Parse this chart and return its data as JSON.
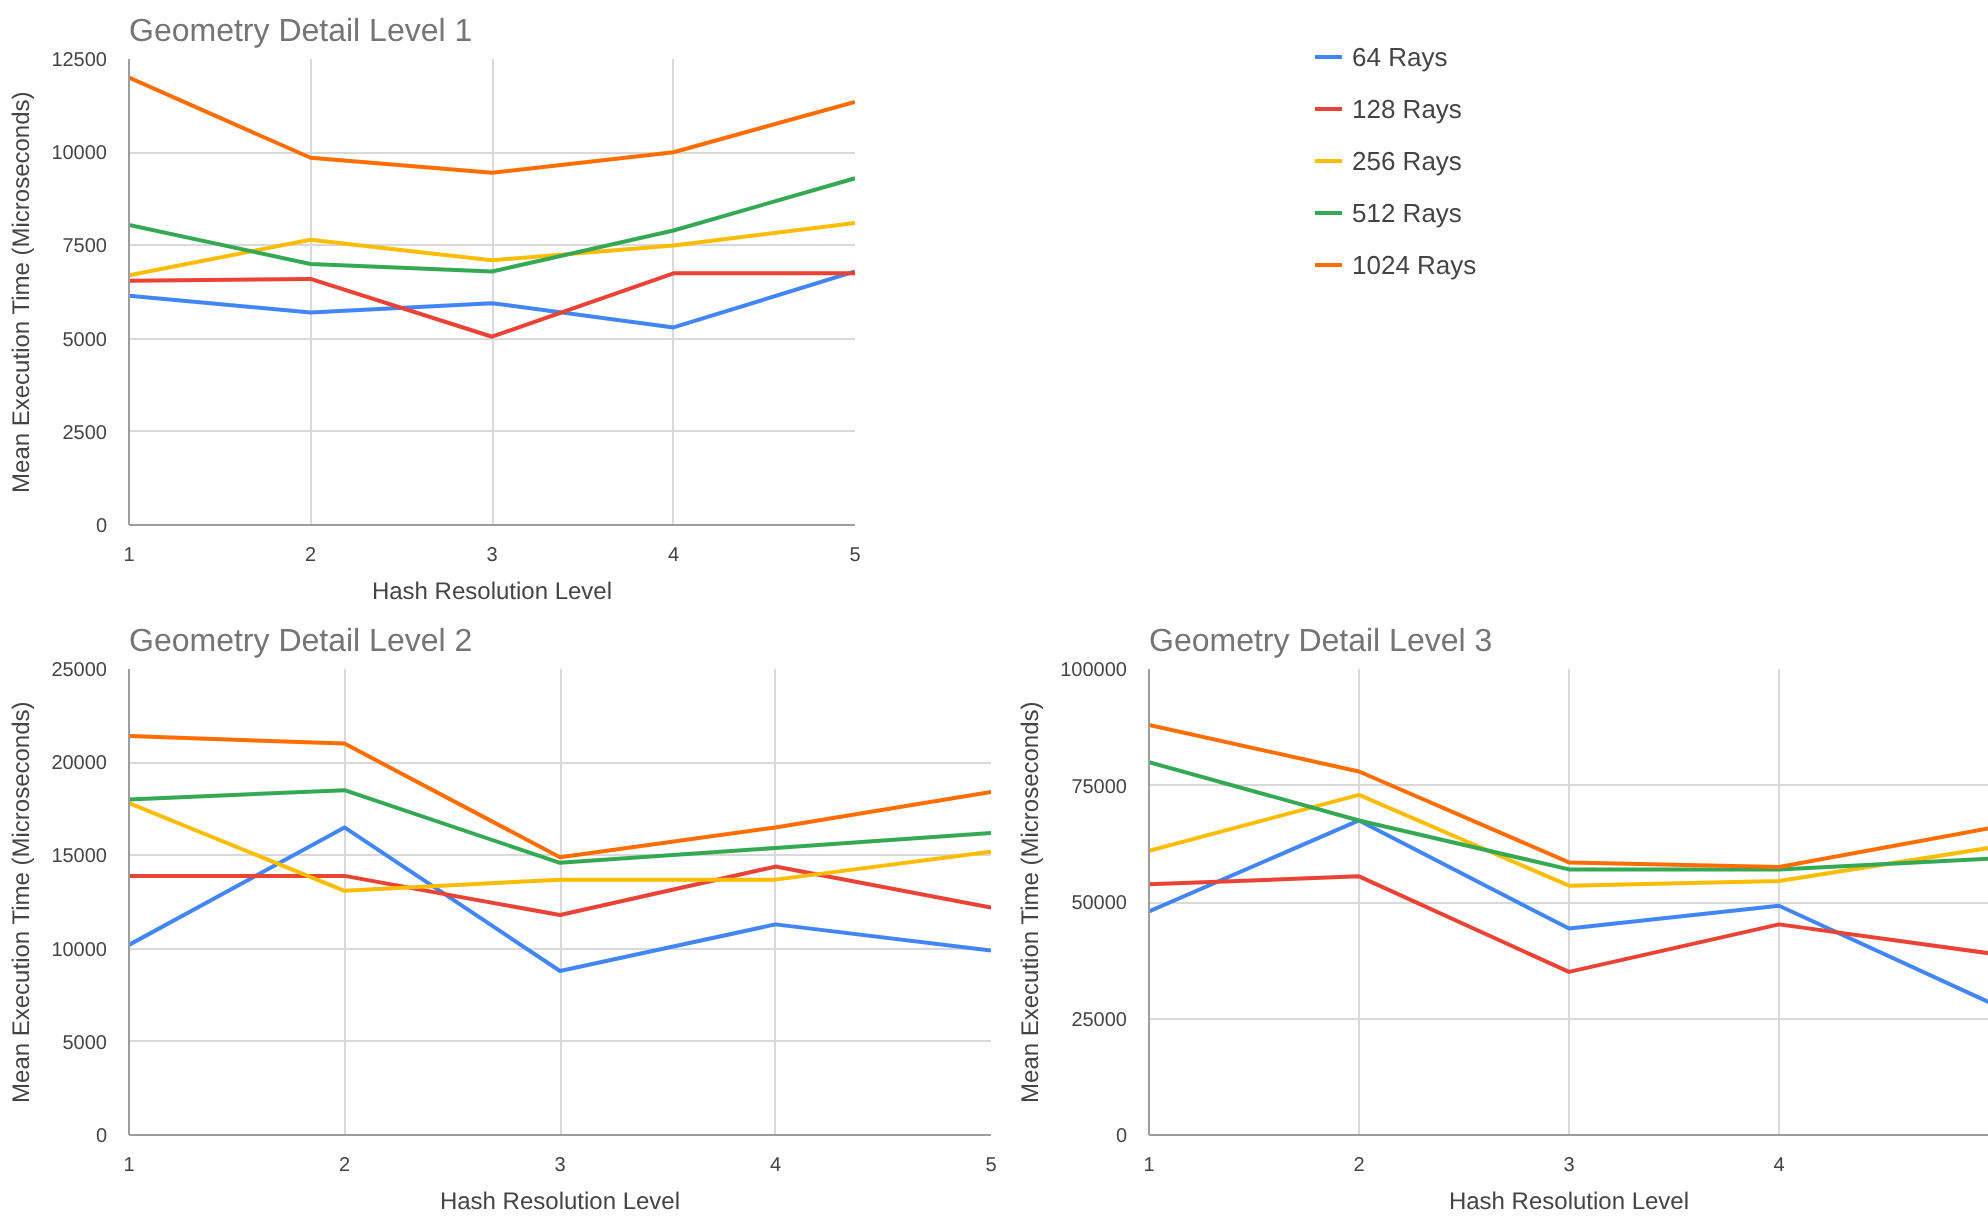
{
  "chart_data": [
    {
      "type": "line",
      "title": "Geometry Detail Level 1",
      "xlabel": "Hash Resolution Level",
      "ylabel": "Mean Execution Time (Microseconds)",
      "x": [
        1,
        2,
        3,
        4,
        5
      ],
      "xlim": [
        1,
        5
      ],
      "xticks": [
        1,
        2,
        3,
        4,
        5
      ],
      "ylim": [
        0,
        12500
      ],
      "yticks": [
        0,
        2500,
        5000,
        7500,
        10000,
        12500
      ],
      "grid": true,
      "legend": "right",
      "series": [
        {
          "name": "64 Rays",
          "color": "#4285f4",
          "values": [
            6150,
            5700,
            5950,
            5300,
            6800
          ]
        },
        {
          "name": "128 Rays",
          "color": "#ea4335",
          "values": [
            6550,
            6600,
            5050,
            6750,
            6750
          ]
        },
        {
          "name": "256 Rays",
          "color": "#fbbc04",
          "values": [
            6700,
            7650,
            7100,
            7500,
            8100
          ]
        },
        {
          "name": "512 Rays",
          "color": "#34a853",
          "values": [
            8050,
            7000,
            6800,
            7900,
            9300
          ]
        },
        {
          "name": "1024 Rays",
          "color": "#ff6d01",
          "values": [
            12000,
            9850,
            9450,
            10000,
            11350
          ]
        }
      ]
    },
    {
      "type": "line",
      "title": "Geometry Detail Level 2",
      "xlabel": "Hash Resolution Level",
      "ylabel": "Mean Execution Time (Microseconds)",
      "x": [
        1,
        2,
        3,
        4,
        5
      ],
      "xlim": [
        1,
        5
      ],
      "xticks": [
        1,
        2,
        3,
        4,
        5
      ],
      "ylim": [
        0,
        25000
      ],
      "yticks": [
        0,
        5000,
        10000,
        15000,
        20000,
        25000
      ],
      "grid": true,
      "series": [
        {
          "color": "#4285f4",
          "values": [
            10200,
            16500,
            8800,
            11300,
            9900
          ]
        },
        {
          "color": "#ea4335",
          "values": [
            13900,
            13900,
            11800,
            14400,
            12200
          ]
        },
        {
          "color": "#fbbc04",
          "values": [
            17800,
            13100,
            13700,
            13700,
            15200
          ]
        },
        {
          "color": "#34a853",
          "values": [
            18000,
            18500,
            14600,
            15400,
            16200
          ]
        },
        {
          "color": "#ff6d01",
          "values": [
            21400,
            21000,
            14900,
            16500,
            18400
          ]
        }
      ]
    },
    {
      "type": "line",
      "title": "Geometry Detail Level 3",
      "xlabel": "Hash Resolution Level",
      "ylabel": "Mean Execution Time (Microseconds)",
      "x": [
        1,
        2,
        3,
        4,
        5
      ],
      "xlim": [
        1,
        5
      ],
      "xticks": [
        1,
        2,
        3,
        4
      ],
      "ylim": [
        0,
        100000
      ],
      "yticks": [
        0,
        25000,
        50000,
        75000,
        100000
      ],
      "grid": true,
      "series": [
        {
          "color": "#4285f4",
          "values": [
            48000,
            67500,
            44300,
            49200,
            28500
          ]
        },
        {
          "color": "#ea4335",
          "values": [
            53800,
            55500,
            35000,
            45200,
            39000
          ]
        },
        {
          "color": "#fbbc04",
          "values": [
            61000,
            73000,
            53500,
            54500,
            61600
          ]
        },
        {
          "color": "#34a853",
          "values": [
            80000,
            67500,
            57000,
            57000,
            59300
          ]
        },
        {
          "color": "#ff6d01",
          "values": [
            88000,
            78000,
            58500,
            57500,
            65800
          ]
        }
      ]
    }
  ]
}
